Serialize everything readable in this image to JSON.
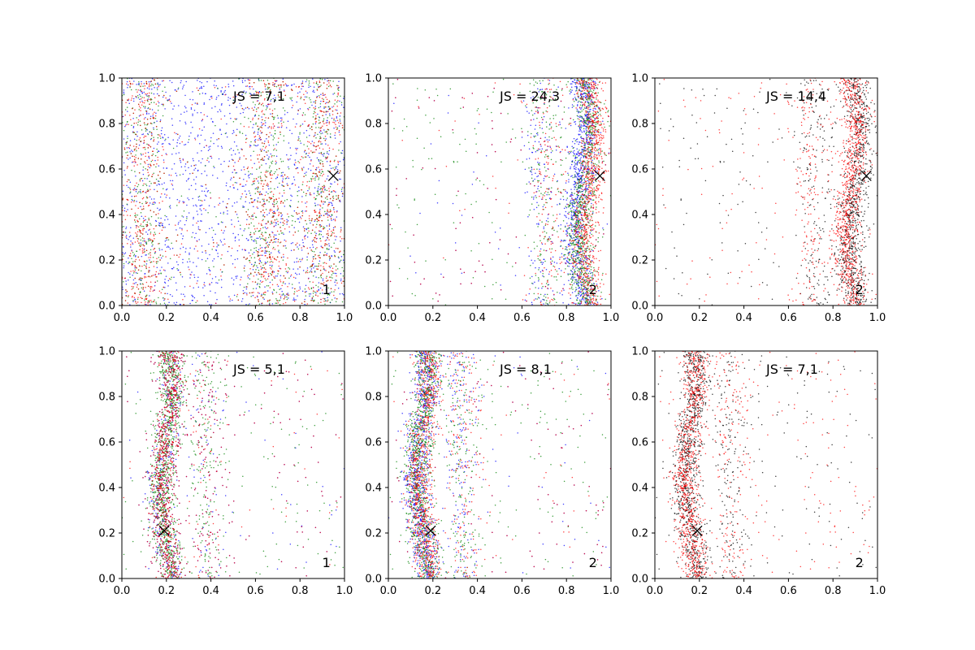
{
  "figure": {
    "background": "#ffffff",
    "colors": {
      "blue": "#0000ff",
      "green": "#008000",
      "red": "#ff0000",
      "black": "#000000"
    }
  },
  "chart_data": [
    {
      "type": "scatter",
      "title": "",
      "xlabel": "",
      "ylabel": "",
      "xlim": [
        0,
        1
      ],
      "ylim": [
        0,
        1
      ],
      "xticks": [
        "0.0",
        "0.2",
        "0.4",
        "0.6",
        "0.8",
        "1.0"
      ],
      "yticks": [
        "0.0",
        "0.2",
        "0.4",
        "0.6",
        "0.8",
        "1.0"
      ],
      "annotation": "JS = 7,1",
      "corner_label": "1",
      "marker": {
        "x": 0.95,
        "y": 0.57
      },
      "series": [
        {
          "color": "blue",
          "pattern": "uniform"
        },
        {
          "color": "green",
          "pattern": "bands",
          "bands": [
            0.1,
            0.65,
            0.9
          ]
        },
        {
          "color": "red",
          "pattern": "bands",
          "bands": [
            0.1,
            0.65,
            0.9
          ]
        }
      ]
    },
    {
      "type": "scatter",
      "title": "",
      "xlabel": "",
      "ylabel": "",
      "xlim": [
        0,
        1
      ],
      "ylim": [
        0,
        1
      ],
      "xticks": [
        "0.0",
        "0.2",
        "0.4",
        "0.6",
        "0.8",
        "1.0"
      ],
      "yticks": [
        "0.0",
        "0.2",
        "0.4",
        "0.6",
        "0.8",
        "1.0"
      ],
      "annotation": "JS = 24,3",
      "corner_label": "2",
      "marker": {
        "x": 0.95,
        "y": 0.57
      },
      "series": [
        {
          "color": "blue",
          "pattern": "band",
          "center": 0.86
        },
        {
          "color": "green",
          "pattern": "band",
          "center": 0.88
        },
        {
          "color": "red",
          "pattern": "band",
          "center": 0.9
        }
      ]
    },
    {
      "type": "scatter",
      "title": "",
      "xlabel": "",
      "ylabel": "",
      "xlim": [
        0,
        1
      ],
      "ylim": [
        0,
        1
      ],
      "xticks": [
        "0.0",
        "0.2",
        "0.4",
        "0.6",
        "0.8",
        "1.0"
      ],
      "yticks": [
        "0.0",
        "0.2",
        "0.4",
        "0.6",
        "0.8",
        "1.0"
      ],
      "annotation": "JS = 14,4",
      "corner_label": "2",
      "marker": {
        "x": 0.95,
        "y": 0.57
      },
      "series": [
        {
          "color": "black",
          "pattern": "band",
          "center": 0.9
        },
        {
          "color": "red",
          "pattern": "band",
          "center": 0.88
        }
      ]
    },
    {
      "type": "scatter",
      "title": "",
      "xlabel": "",
      "ylabel": "",
      "xlim": [
        0,
        1
      ],
      "ylim": [
        0,
        1
      ],
      "xticks": [
        "0.0",
        "0.2",
        "0.4",
        "0.6",
        "0.8",
        "1.0"
      ],
      "yticks": [
        "0.0",
        "0.2",
        "0.4",
        "0.6",
        "0.8",
        "1.0"
      ],
      "annotation": "JS = 5,1",
      "corner_label": "1",
      "marker": {
        "x": 0.19,
        "y": 0.21
      },
      "series": [
        {
          "color": "blue",
          "pattern": "band",
          "center": 0.2
        },
        {
          "color": "green",
          "pattern": "band",
          "center": 0.2
        },
        {
          "color": "red",
          "pattern": "band",
          "center": 0.2
        }
      ]
    },
    {
      "type": "scatter",
      "title": "",
      "xlabel": "",
      "ylabel": "",
      "xlim": [
        0,
        1
      ],
      "ylim": [
        0,
        1
      ],
      "xticks": [
        "0.0",
        "0.2",
        "0.4",
        "0.6",
        "0.8",
        "1.0"
      ],
      "yticks": [
        "0.0",
        "0.2",
        "0.4",
        "0.6",
        "0.8",
        "1.0"
      ],
      "annotation": "JS = 8,1",
      "corner_label": "2",
      "marker": {
        "x": 0.19,
        "y": 0.21
      },
      "series": [
        {
          "color": "blue",
          "pattern": "band",
          "center": 0.15
        },
        {
          "color": "green",
          "pattern": "band",
          "center": 0.15
        },
        {
          "color": "red",
          "pattern": "band",
          "center": 0.16
        }
      ]
    },
    {
      "type": "scatter",
      "title": "",
      "xlabel": "",
      "ylabel": "",
      "xlim": [
        0,
        1
      ],
      "ylim": [
        0,
        1
      ],
      "xticks": [
        "0.0",
        "0.2",
        "0.4",
        "0.6",
        "0.8",
        "1.0"
      ],
      "yticks": [
        "0.0",
        "0.2",
        "0.4",
        "0.6",
        "0.8",
        "1.0"
      ],
      "annotation": "JS = 7,1",
      "corner_label": "2",
      "marker": {
        "x": 0.19,
        "y": 0.21
      },
      "series": [
        {
          "color": "black",
          "pattern": "band",
          "center": 0.16
        },
        {
          "color": "red",
          "pattern": "band",
          "center": 0.16
        }
      ]
    }
  ]
}
